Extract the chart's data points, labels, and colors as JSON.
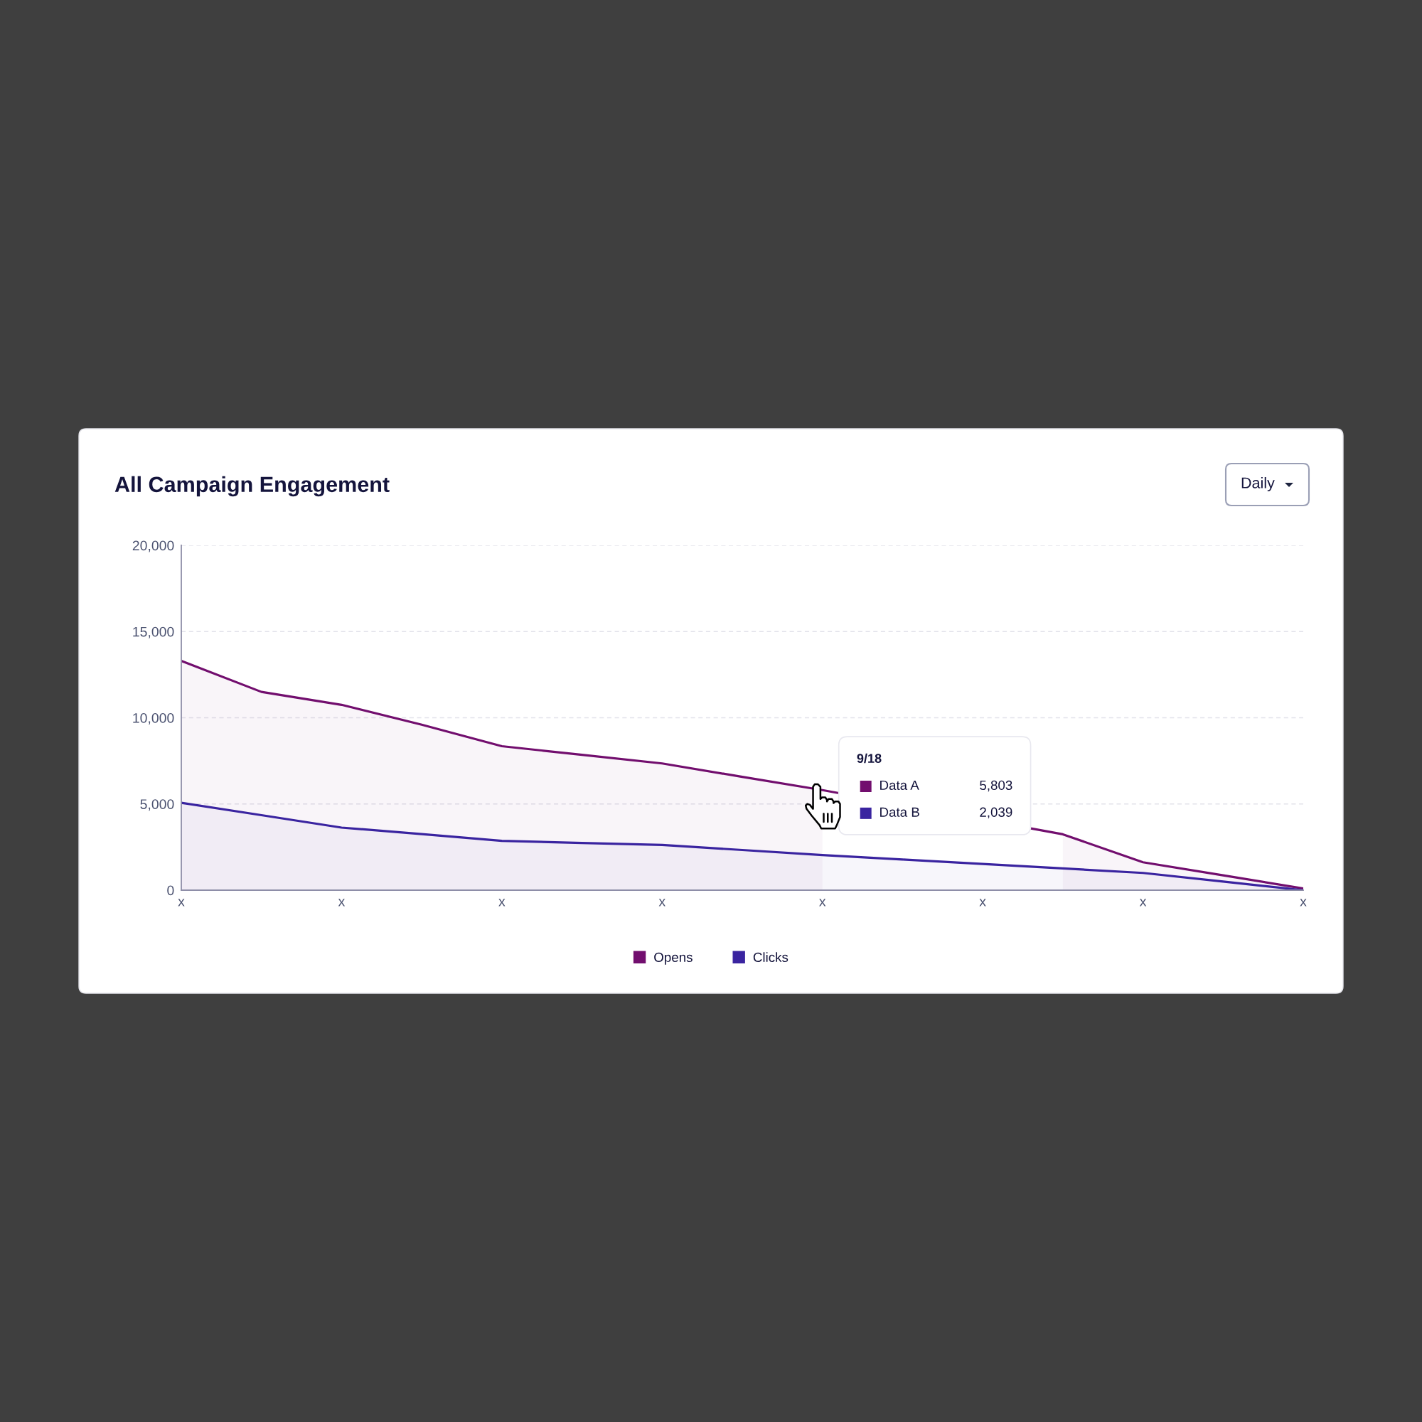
{
  "chart_data": {
    "type": "area",
    "title": "All Campaign Engagement",
    "categories": [
      "x",
      null,
      "x",
      null,
      "x",
      null,
      "x",
      null,
      "x",
      null,
      "x",
      null,
      "x",
      null,
      "x"
    ],
    "ylim": [
      0,
      20000
    ],
    "yticks": [
      0,
      {
        "value": 5000,
        "label": "5,000"
      },
      {
        "value": 10000,
        "label": "10,000"
      },
      {
        "value": 15000,
        "label": "15,000"
      },
      {
        "value": 20000,
        "label": "20,000"
      }
    ],
    "grid": "y",
    "legend": "bottom",
    "series": [
      {
        "name": "Opens",
        "color": "#720e6e",
        "values": [
          13300,
          11500,
          10750,
          9600,
          8350,
          7850,
          7350,
          6570,
          5803,
          null,
          null,
          3240,
          1620,
          860,
          100
        ]
      },
      {
        "name": "Clicks",
        "color": "#3a24a0",
        "values": [
          5070,
          4350,
          3630,
          3250,
          2860,
          2740,
          2620,
          2330,
          2039,
          1780,
          1520,
          1260,
          1000,
          500,
          0
        ]
      }
    ],
    "annotations": [
      "Daily",
      "9/18",
      "Data A",
      "5,803",
      "Data B",
      "2,039"
    ]
  }
}
